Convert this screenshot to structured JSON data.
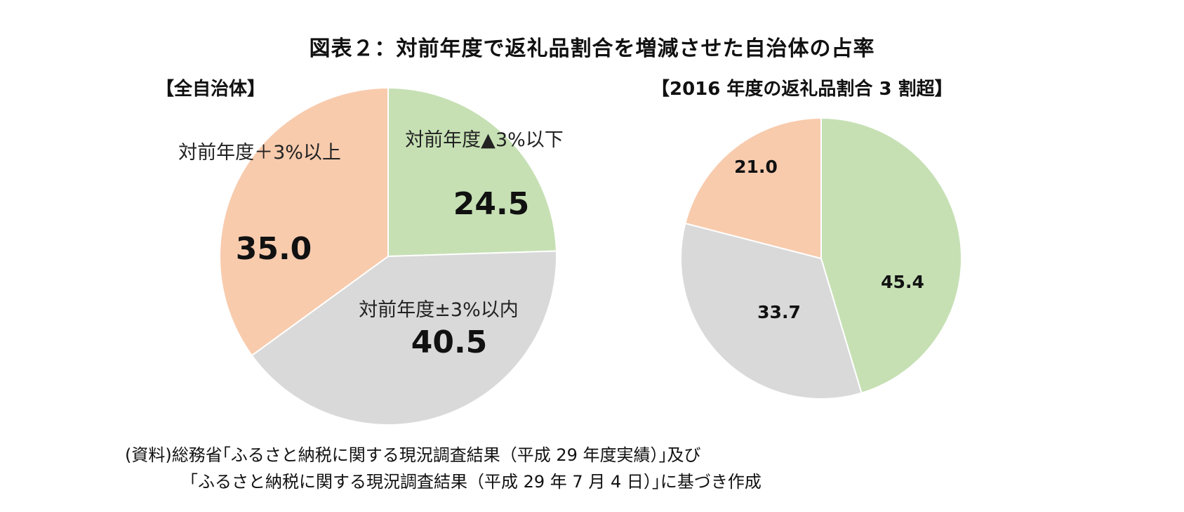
{
  "title": "図表２：対前年度で返礼品割合を増減させた自治体の占率",
  "colors": {
    "decrease": "#c6e0b4",
    "within": "#d9d9d9",
    "increase": "#f8cbad"
  },
  "chart_data": [
    {
      "type": "pie",
      "title": "【全自治体】",
      "slices": [
        {
          "label": "対前年度▲3%以下",
          "value": 24.5,
          "value_label": "24.5",
          "color": "#c6e0b4"
        },
        {
          "label": "対前年度±3%以内",
          "value": 40.5,
          "value_label": "40.5",
          "color": "#d9d9d9"
        },
        {
          "label": "対前年度＋3%以上",
          "value": 35.0,
          "value_label": "35.0",
          "color": "#f8cbad"
        }
      ]
    },
    {
      "type": "pie",
      "title": "【2016 年度の返礼品割合 3 割超】",
      "slices": [
        {
          "value": 45.4,
          "value_label": "45.4",
          "color": "#c6e0b4"
        },
        {
          "value": 33.7,
          "value_label": "33.7",
          "color": "#d9d9d9"
        },
        {
          "value": 21.0,
          "value_label": "21.0",
          "color": "#f8cbad"
        }
      ]
    }
  ],
  "source": {
    "line1": "(資料)総務省｢ふるさと納税に関する現況調査結果（平成 29 年度実績）｣及び",
    "line2": "｢ふるさと納税に関する現況調査結果（平成 29 年 7 月 4 日）｣に基づき作成"
  }
}
